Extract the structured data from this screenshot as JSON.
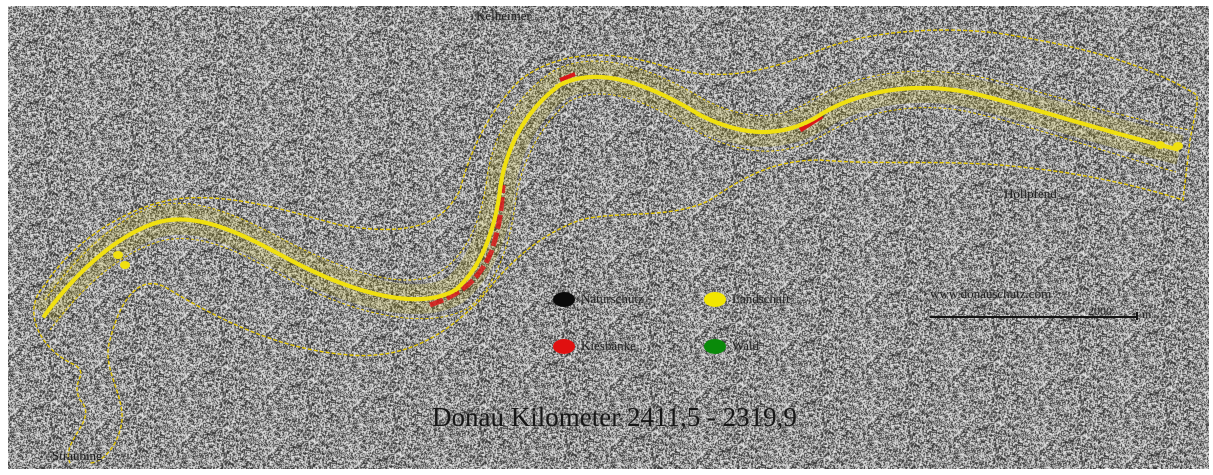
{
  "map": {
    "title": "Donau Kilometer 2411,5 - 2319,9",
    "places": {
      "top": "Kelheimer",
      "right": "Hollpfend",
      "bottom_left": "Straubing"
    },
    "legend": [
      {
        "label": "Naturschutz",
        "color": "#0a0a0a",
        "icon": "black-dot-icon"
      },
      {
        "label": "Landschaft",
        "color": "#f2e600",
        "icon": "yellow-dot-icon"
      },
      {
        "label": "Kiesbänke",
        "color": "#e01010",
        "icon": "red-dot-icon"
      },
      {
        "label": "Wald",
        "color": "#0a8a0a",
        "icon": "green-dot-icon"
      }
    ],
    "copyright": "www.donauschutz.com",
    "scale": {
      "label": "2000",
      "unit": "m"
    },
    "colors": {
      "boundary": "#e2c400",
      "markers": "#f0e010",
      "gravel_bank": "#d81818",
      "background_noise": "#5a5a5a"
    }
  }
}
